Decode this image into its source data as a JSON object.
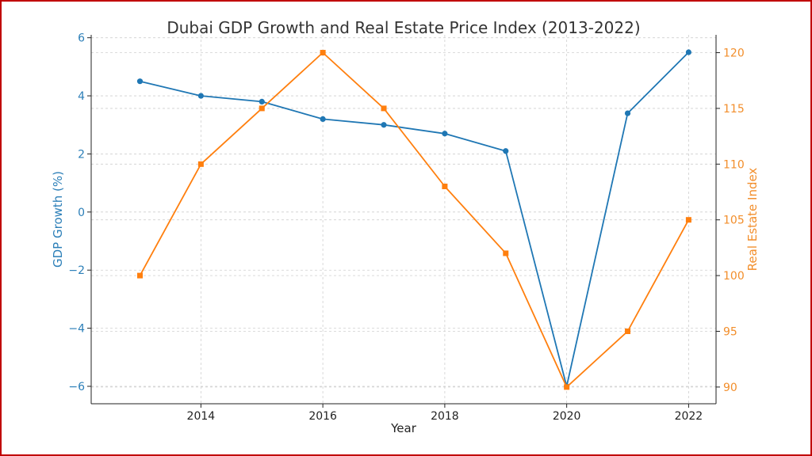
{
  "chart_data": {
    "type": "line",
    "title": "Dubai GDP Growth and Real Estate Price Index (2013-2022)",
    "xlabel": "Year",
    "x": [
      2013,
      2014,
      2015,
      2016,
      2017,
      2018,
      2019,
      2020,
      2021,
      2022
    ],
    "x_ticks": [
      2014,
      2016,
      2018,
      2020,
      2022
    ],
    "xlim": [
      2012.2,
      2022.45
    ],
    "grid": true,
    "y_left": {
      "label": "GDP Growth (%)",
      "lim": [
        -6.6,
        6.1
      ],
      "ticks": [
        -6,
        -4,
        -2,
        0,
        2,
        4,
        6
      ],
      "color": "#2c7fb8"
    },
    "y_right": {
      "label": "Real Estate Index",
      "lim": [
        88.5,
        121.6
      ],
      "ticks": [
        90,
        95,
        100,
        105,
        110,
        115,
        120
      ],
      "color": "#f28e2b"
    },
    "series": [
      {
        "axis": "left",
        "color": "#1f77b4",
        "marker": "circle",
        "values": [
          4.5,
          4.0,
          3.8,
          3.2,
          3.0,
          2.7,
          2.1,
          -6.0,
          3.4,
          5.5
        ]
      },
      {
        "axis": "right",
        "color": "#ff7f0e",
        "marker": "square",
        "values": [
          100,
          110,
          115,
          120,
          115,
          108,
          102,
          90,
          95,
          105
        ]
      }
    ]
  }
}
